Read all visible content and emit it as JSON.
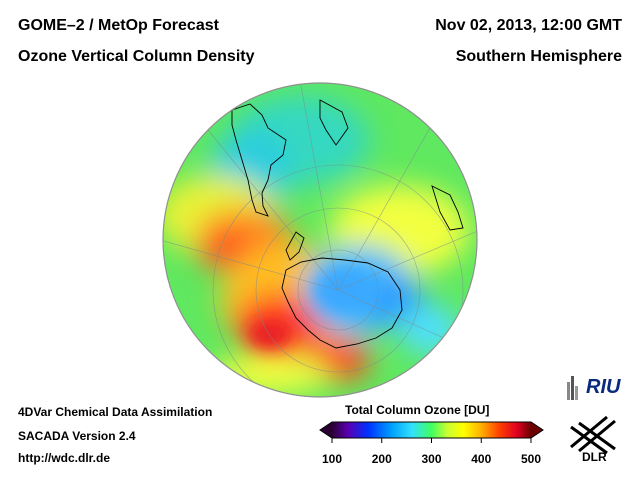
{
  "header": {
    "product": "GOME–2 / MetOp Forecast",
    "quantity": "Ozone Vertical Column Density",
    "datetime": "Nov 02, 2013, 12:00 GMT",
    "region": "Southern Hemisphere"
  },
  "footer": {
    "method": "4DVar Chemical Data Assimilation",
    "version": "SACADA Version 2.4",
    "url": "http://wdc.dlr.de"
  },
  "colorbar": {
    "title": "Total Column Ozone [DU]",
    "ticks": [
      "100",
      "200",
      "300",
      "400",
      "500"
    ],
    "min": 100,
    "max": 500,
    "colors": [
      "#2a0033",
      "#5a00b0",
      "#0030ff",
      "#00a0ff",
      "#30e0ff",
      "#40ff60",
      "#c8ff30",
      "#ffff00",
      "#ffb000",
      "#ff4000",
      "#e00020",
      "#6a0000"
    ]
  },
  "logos": {
    "riu": "RIU",
    "dlr": "DLR"
  },
  "map_data": {
    "projection": "orthographic, south pole",
    "fields": [
      {
        "name": "ozone-hole",
        "ozone_du": 220
      },
      {
        "name": "high-ozone-collar",
        "ozone_du": 440
      },
      {
        "name": "mid-latitude-belt",
        "ozone_du": 300
      }
    ]
  }
}
